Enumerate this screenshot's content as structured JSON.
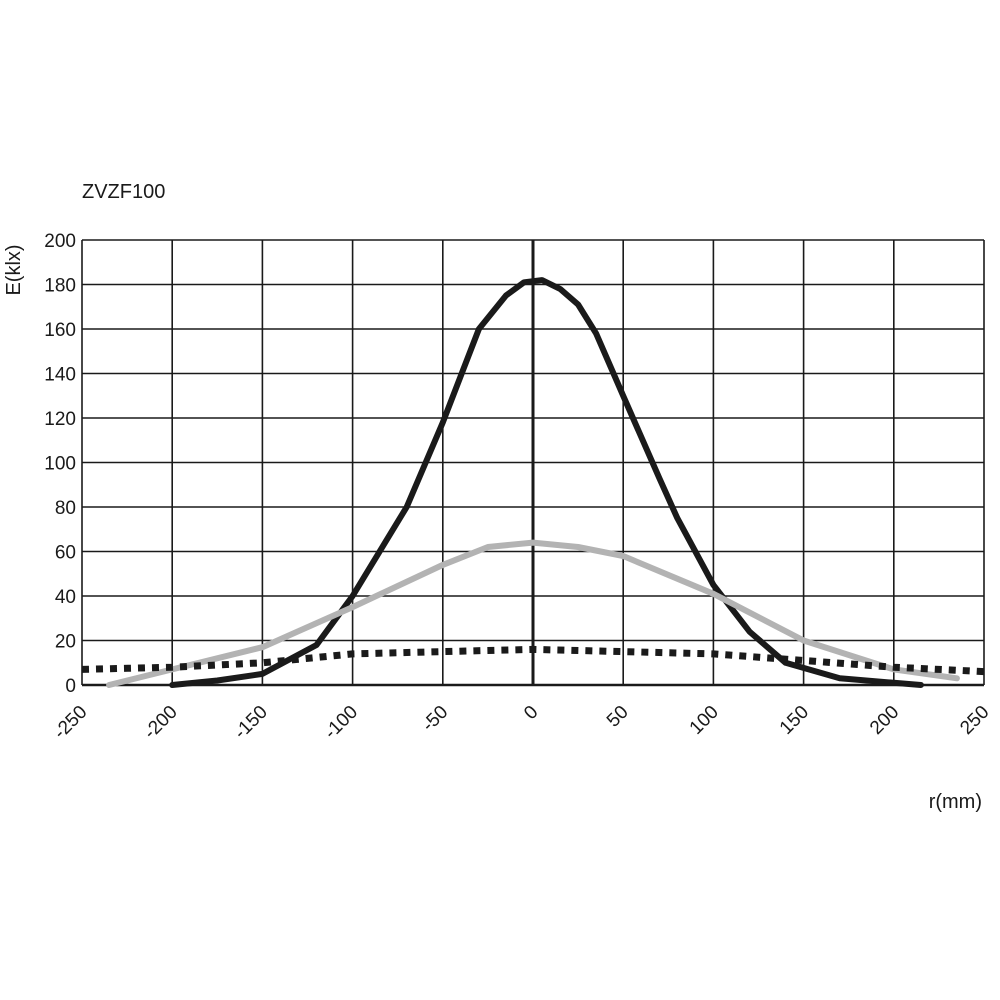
{
  "chart_data": {
    "type": "line",
    "title": "ZVZF100",
    "xlabel": "r(mm)",
    "ylabel": "E(klx)",
    "xlim": [
      -250,
      250
    ],
    "ylim": [
      0,
      200
    ],
    "xticks": [
      -250,
      -200,
      -150,
      -100,
      -50,
      0,
      50,
      100,
      150,
      200,
      250
    ],
    "yticks": [
      0,
      20,
      40,
      60,
      80,
      100,
      120,
      140,
      160,
      180,
      200
    ],
    "grid": true,
    "legend": "none",
    "series": [
      {
        "style": "solid",
        "color": "#1a1a1a",
        "x": [
          -200,
          -175,
          -150,
          -120,
          -100,
          -70,
          -50,
          -30,
          -15,
          -5,
          5,
          15,
          25,
          35,
          50,
          70,
          80,
          100,
          120,
          140,
          170,
          200,
          215
        ],
        "y": [
          0,
          2,
          5,
          18,
          40,
          80,
          118,
          160,
          175,
          181,
          182,
          178,
          171,
          158,
          130,
          93,
          75,
          45,
          24,
          10,
          3,
          1,
          0
        ]
      },
      {
        "style": "solid",
        "color": "#b3b3b3",
        "x": [
          -235,
          -200,
          -150,
          -100,
          -50,
          -25,
          0,
          25,
          50,
          100,
          150,
          200,
          235
        ],
        "y": [
          0,
          7,
          17,
          35,
          54,
          62,
          64,
          62,
          58,
          41,
          20,
          7,
          3
        ]
      },
      {
        "style": "dotted",
        "color": "#1a1a1a",
        "x": [
          -250,
          -200,
          -150,
          -100,
          -50,
          0,
          50,
          100,
          150,
          200,
          250
        ],
        "y": [
          7,
          8,
          10,
          14,
          15,
          16,
          15,
          14,
          11,
          8,
          6
        ]
      }
    ]
  }
}
